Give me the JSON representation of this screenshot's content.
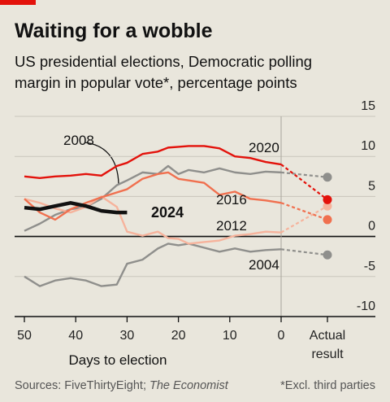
{
  "chart_data": {
    "type": "line",
    "title": "Waiting for a wobble",
    "subtitle": [
      "US presidential elections, Democratic polling",
      "margin in popular vote*, percentage points"
    ],
    "x_label": "Days to election",
    "actual_label": [
      "Actual",
      "result"
    ],
    "source": "Sources: FiveThirtyEight;",
    "source_italic": "The Economist",
    "note": "*Excl. third parties",
    "xlim": [
      50,
      0
    ],
    "xticks": [
      50,
      40,
      30,
      20,
      10,
      0
    ],
    "ylim": [
      -10,
      15
    ],
    "yticks": [
      -10,
      -5,
      0,
      5,
      10,
      15
    ],
    "x": [
      50,
      47,
      44,
      41,
      38,
      35,
      32,
      30,
      27,
      24,
      22,
      20,
      18,
      15,
      12,
      9,
      6,
      3,
      0
    ],
    "series": [
      {
        "name": "2004",
        "color": "#8f8f8c",
        "values": [
          -5,
          -6.2,
          -5.5,
          -5.2,
          -5.5,
          -6.2,
          -6,
          -3.4,
          -2.9,
          -1.5,
          -0.9,
          -1.1,
          -0.9,
          -1.4,
          -1.9,
          -1.5,
          -1.9,
          -1.7,
          -1.6
        ],
        "actual": -2.3
      },
      {
        "name": "2008",
        "color": "#8f8f8c",
        "values": [
          0.7,
          1.6,
          2.7,
          3.4,
          3.7,
          4.7,
          6.4,
          7,
          8,
          7.8,
          8.8,
          7.8,
          8.3,
          8,
          8.5,
          8,
          7.8,
          8.1,
          8
        ],
        "actual": 7.4
      },
      {
        "name": "2012",
        "color": "#f6b39c",
        "values": [
          4.7,
          4.2,
          3.5,
          3,
          3.7,
          5,
          3.7,
          0.6,
          0.1,
          0.6,
          -0.2,
          -0.3,
          -0.9,
          -0.7,
          -0.5,
          0.1,
          0.3,
          0.6,
          0.5
        ],
        "actual": 3.8
      },
      {
        "name": "2016",
        "color": "#f0704f",
        "values": [
          4.7,
          3,
          2.1,
          3.4,
          4.2,
          4.9,
          5.5,
          5.9,
          7.2,
          7.8,
          8,
          7.2,
          7,
          6.7,
          5.2,
          5.6,
          4.7,
          4.5,
          4.2
        ],
        "actual": 2.1
      },
      {
        "name": "2020",
        "color": "#e3120b",
        "values": [
          7.5,
          7.3,
          7.5,
          7.6,
          7.8,
          7.6,
          8.8,
          9.2,
          10.3,
          10.6,
          11.1,
          11.2,
          11.3,
          11.3,
          11,
          10,
          9.8,
          9.3,
          9
        ],
        "actual": 4.6
      },
      {
        "name": "2024",
        "color": "#111111",
        "values": [
          3.6,
          3.4,
          3.8,
          4.2,
          3.8,
          3.2,
          3,
          3,
          null,
          null,
          null,
          null,
          null,
          null,
          null,
          null,
          null,
          null,
          null
        ]
      }
    ]
  }
}
